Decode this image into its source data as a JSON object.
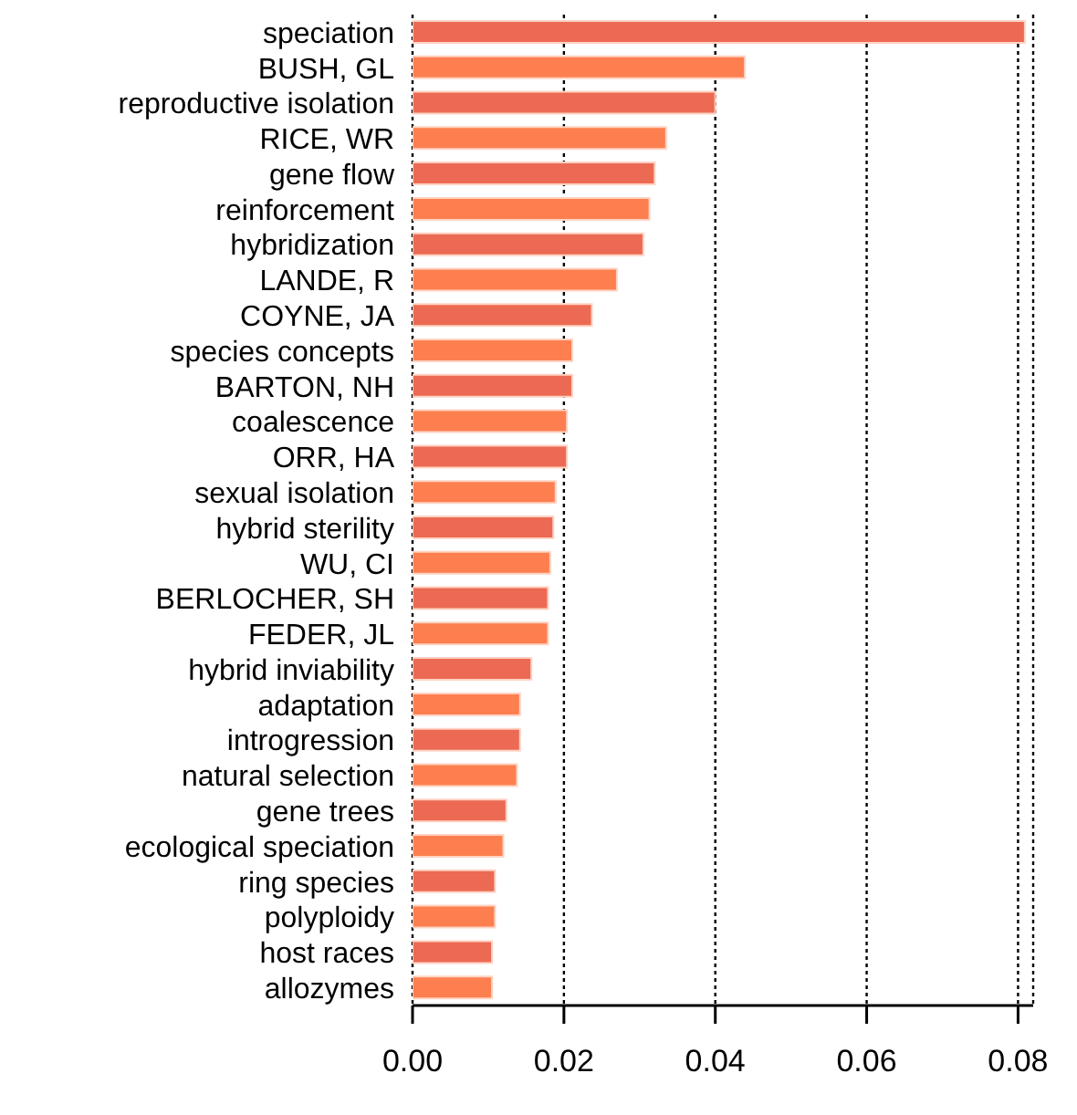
{
  "chart_data": {
    "type": "bar",
    "orientation": "horizontal",
    "categories": [
      "speciation",
      "BUSH, GL",
      "reproductive isolation",
      "RICE, WR",
      "gene flow",
      "reinforcement",
      "hybridization",
      "LANDE, R",
      "COYNE, JA",
      "species concepts",
      "BARTON, NH",
      "coalescence",
      "ORR, HA",
      "sexual isolation",
      "hybrid sterility",
      "WU, CI",
      "BERLOCHER, SH",
      "FEDER, JL",
      "hybrid inviability",
      "adaptation",
      "introgression",
      "natural selection",
      "gene trees",
      "ecological speciation",
      "ring species",
      "polyploidy",
      "host races",
      "allozymes"
    ],
    "values": [
      0.0809,
      0.0439,
      0.04,
      0.0335,
      0.032,
      0.0313,
      0.0305,
      0.027,
      0.0237,
      0.0211,
      0.0211,
      0.0204,
      0.0204,
      0.0189,
      0.0186,
      0.0182,
      0.0179,
      0.0179,
      0.0157,
      0.0142,
      0.0142,
      0.0138,
      0.0124,
      0.012,
      0.0109,
      0.0109,
      0.0105,
      0.0105
    ],
    "colors": [
      "#ec6a53",
      "#fd7f4f",
      "#ec6a53",
      "#fd7f4f",
      "#ec6a53",
      "#fd7f4f",
      "#ec6a53",
      "#fd7f4f",
      "#ec6a53",
      "#fd7f4f",
      "#ec6a53",
      "#fd7f4f",
      "#ec6a53",
      "#fd7f4f",
      "#ec6a53",
      "#fd7f4f",
      "#ec6a53",
      "#fd7f4f",
      "#ec6a53",
      "#fd7f4f",
      "#ec6a53",
      "#fd7f4f",
      "#ec6a53",
      "#fd7f4f",
      "#ec6a53",
      "#fd7f4f",
      "#ec6a53",
      "#fd7f4f"
    ],
    "xlim": [
      0,
      0.082
    ],
    "xticks": [
      {
        "value": 0,
        "label": "0.00"
      },
      {
        "value": 0.02,
        "label": "0.02"
      },
      {
        "value": 0.04,
        "label": "0.04"
      },
      {
        "value": 0.06,
        "label": "0.06"
      },
      {
        "value": 0.08,
        "label": "0.08"
      }
    ],
    "grid": "x"
  }
}
